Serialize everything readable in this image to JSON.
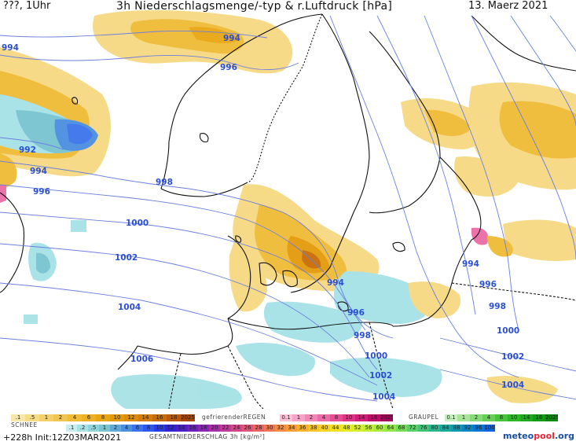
{
  "header": {
    "left": "???, 1Uhr",
    "title": "3h Niederschlagsmenge/-typ & r.Luftdruck [hPa]",
    "date": "13. Maerz 2021"
  },
  "isobars": [
    {
      "label": "994",
      "pos": "nw"
    },
    {
      "label": "994",
      "pos": "north"
    },
    {
      "label": "996",
      "pos": "north"
    },
    {
      "label": "992",
      "pos": "west"
    },
    {
      "label": "994",
      "pos": "west"
    },
    {
      "label": "996",
      "pos": "west"
    },
    {
      "label": "998",
      "pos": "center"
    },
    {
      "label": "1000",
      "pos": "center"
    },
    {
      "label": "1002",
      "pos": "center"
    },
    {
      "label": "1004",
      "pos": "sw"
    },
    {
      "label": "1006",
      "pos": "sw"
    },
    {
      "label": "994",
      "pos": "baltic"
    },
    {
      "label": "994",
      "pos": "east"
    },
    {
      "label": "996",
      "pos": "baltic"
    },
    {
      "label": "996",
      "pos": "east"
    },
    {
      "label": "998",
      "pos": "baltic"
    },
    {
      "label": "998",
      "pos": "east"
    },
    {
      "label": "1000",
      "pos": "south"
    },
    {
      "label": "1000",
      "pos": "east"
    },
    {
      "label": "1002",
      "pos": "south"
    },
    {
      "label": "1002",
      "pos": "east"
    },
    {
      "label": "1004",
      "pos": "south"
    },
    {
      "label": "1004",
      "pos": "east"
    }
  ],
  "legend": {
    "rain_values": [
      ".1",
      ".5",
      "1",
      "2",
      "4",
      "6",
      "8",
      "10",
      "12",
      "14",
      "16",
      "18",
      "2025+"
    ],
    "fz_label": "gefrierenderREGEN",
    "fz_values": [
      "0.1",
      "1",
      "2",
      "4",
      "8",
      "10",
      "14",
      "18",
      "2025+"
    ],
    "graupel_label": "GRAUPEL",
    "graupel_values": [
      "0.1",
      "1",
      "2",
      "4",
      "8",
      "10",
      "14",
      "16",
      "2025+"
    ],
    "snow_label": "SCHNEE",
    "snow_values": [
      ".1",
      ".2",
      ".5",
      "1",
      "2",
      "4",
      "6",
      "8",
      "10",
      "12",
      "14",
      "16",
      "18",
      "20",
      "22",
      "24",
      "26",
      "28",
      "30",
      "32",
      "34",
      "36",
      "38",
      "40",
      "44",
      "48",
      "52",
      "56",
      "60",
      "64",
      "68",
      "72",
      "76",
      "80",
      "84",
      "88",
      "92",
      "96",
      "100"
    ],
    "total_label": "GESAMTNIEDERSCHLAG 3h [kg/m²]",
    "colors": {
      "rain": [
        "#f7e7a8",
        "#f6dc85",
        "#f4d06a",
        "#f2c64e",
        "#f0bb35",
        "#ecb022",
        "#e8a612",
        "#e39a0a",
        "#dc8c08",
        "#d47c06",
        "#ca6c05",
        "#bd5a04",
        "#a84803"
      ],
      "fz": [
        "#f9c0d6",
        "#f5a3c6",
        "#f087b6",
        "#eb6ba6",
        "#e54f96",
        "#de3486",
        "#d01f78",
        "#bd0f6a",
        "#a5065b"
      ],
      "graupel": [
        "#c9f0c0",
        "#a8e59b",
        "#87da78",
        "#66cf56",
        "#47c43a",
        "#2db82a",
        "#1ea91f",
        "#139a16",
        "#0b8a0e"
      ],
      "snow_total": [
        "#c9eef0",
        "#a6e2e6",
        "#8fd3db",
        "#78c4cf",
        "#5fa9d6",
        "#4b8ee0",
        "#3a73ea",
        "#2d57f0",
        "#2a3ce8",
        "#3024d6",
        "#4a1fc8",
        "#6a1fbf",
        "#8a25b6",
        "#a82eaa",
        "#bf3a9a",
        "#d0478a",
        "#de5577",
        "#e86564",
        "#f07753",
        "#f58a44",
        "#f89d37",
        "#f9b02d",
        "#f9c226",
        "#f8d322",
        "#f3e021",
        "#e7e923",
        "#d6ee27",
        "#c1ef2f",
        "#a9ec39",
        "#8fe646",
        "#74dd55",
        "#5ad166",
        "#42c478",
        "#2db68b",
        "#1ca79e",
        "#1097b1",
        "#0a87c4",
        "#0976d4",
        "#0b64e0"
      ]
    }
  },
  "footer": {
    "run": "+228h  Init:12Z03MAR2021",
    "brand_a": "meteo",
    "brand_b": "pool",
    "brand_c": ".org"
  }
}
